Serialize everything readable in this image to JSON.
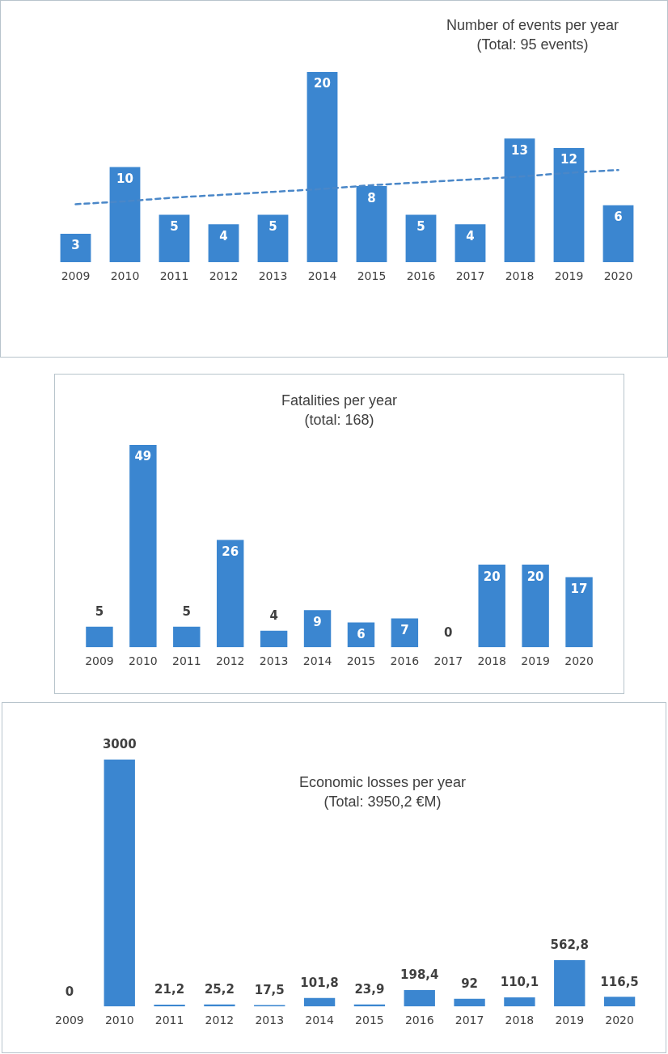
{
  "chart_data": [
    {
      "type": "bar",
      "title": "Number of events per year",
      "subtitle": "(Total: 95 events)",
      "categories": [
        "2009",
        "2010",
        "2011",
        "2012",
        "2013",
        "2014",
        "2015",
        "2016",
        "2017",
        "2018",
        "2019",
        "2020"
      ],
      "series": [
        {
          "color": "#3b86d0",
          "values": [
            3,
            10,
            5,
            4,
            5,
            20,
            8,
            5,
            4,
            13,
            12,
            6
          ],
          "value_labels": [
            "3",
            "10",
            "5",
            "4",
            "5",
            "20",
            "8",
            "5",
            "4",
            "13",
            "12",
            "6"
          ]
        },
        {
          "type": "line",
          "color": "#4a87c8",
          "values": [
            6.1,
            6.4,
            6.8,
            7.1,
            7.4,
            7.7,
            8.1,
            8.4,
            8.7,
            9.0,
            9.4,
            9.7
          ],
          "line_style": "dashed",
          "marker": "none"
        }
      ],
      "grid": false,
      "legend": false
    },
    {
      "type": "bar",
      "title": "Fatalities per year",
      "subtitle": "(total: 168)",
      "categories": [
        "2009",
        "2010",
        "2011",
        "2012",
        "2013",
        "2014",
        "2015",
        "2016",
        "2017",
        "2018",
        "2019",
        "2020"
      ],
      "series": [
        {
          "color": "#3b86d0",
          "values": [
            5,
            49,
            5,
            26,
            4,
            9,
            6,
            7,
            0,
            20,
            20,
            17
          ],
          "value_labels": [
            "5",
            "49",
            "5",
            "26",
            "4",
            "9",
            "6",
            "7",
            "0",
            "20",
            "20",
            "17"
          ]
        }
      ],
      "grid": false,
      "legend": false
    },
    {
      "type": "bar",
      "title": "Economic losses per year",
      "subtitle": "(Total: 3950,2 €M)",
      "categories": [
        "2009",
        "2010",
        "2011",
        "2012",
        "2013",
        "2014",
        "2015",
        "2016",
        "2017",
        "2018",
        "2019",
        "2020"
      ],
      "series": [
        {
          "color": "#3b86d0",
          "values": [
            0,
            3000,
            21.2,
            25.2,
            17.5,
            101.8,
            23.9,
            198.4,
            92,
            110.1,
            562.8,
            116.5
          ],
          "value_labels": [
            "0",
            "3000",
            "21,2",
            "25,2",
            "17,5",
            "101,8",
            "23,9",
            "198,4",
            "92",
            "110,1",
            "562,8",
            "116,5"
          ]
        }
      ],
      "grid": false,
      "legend": false
    }
  ]
}
